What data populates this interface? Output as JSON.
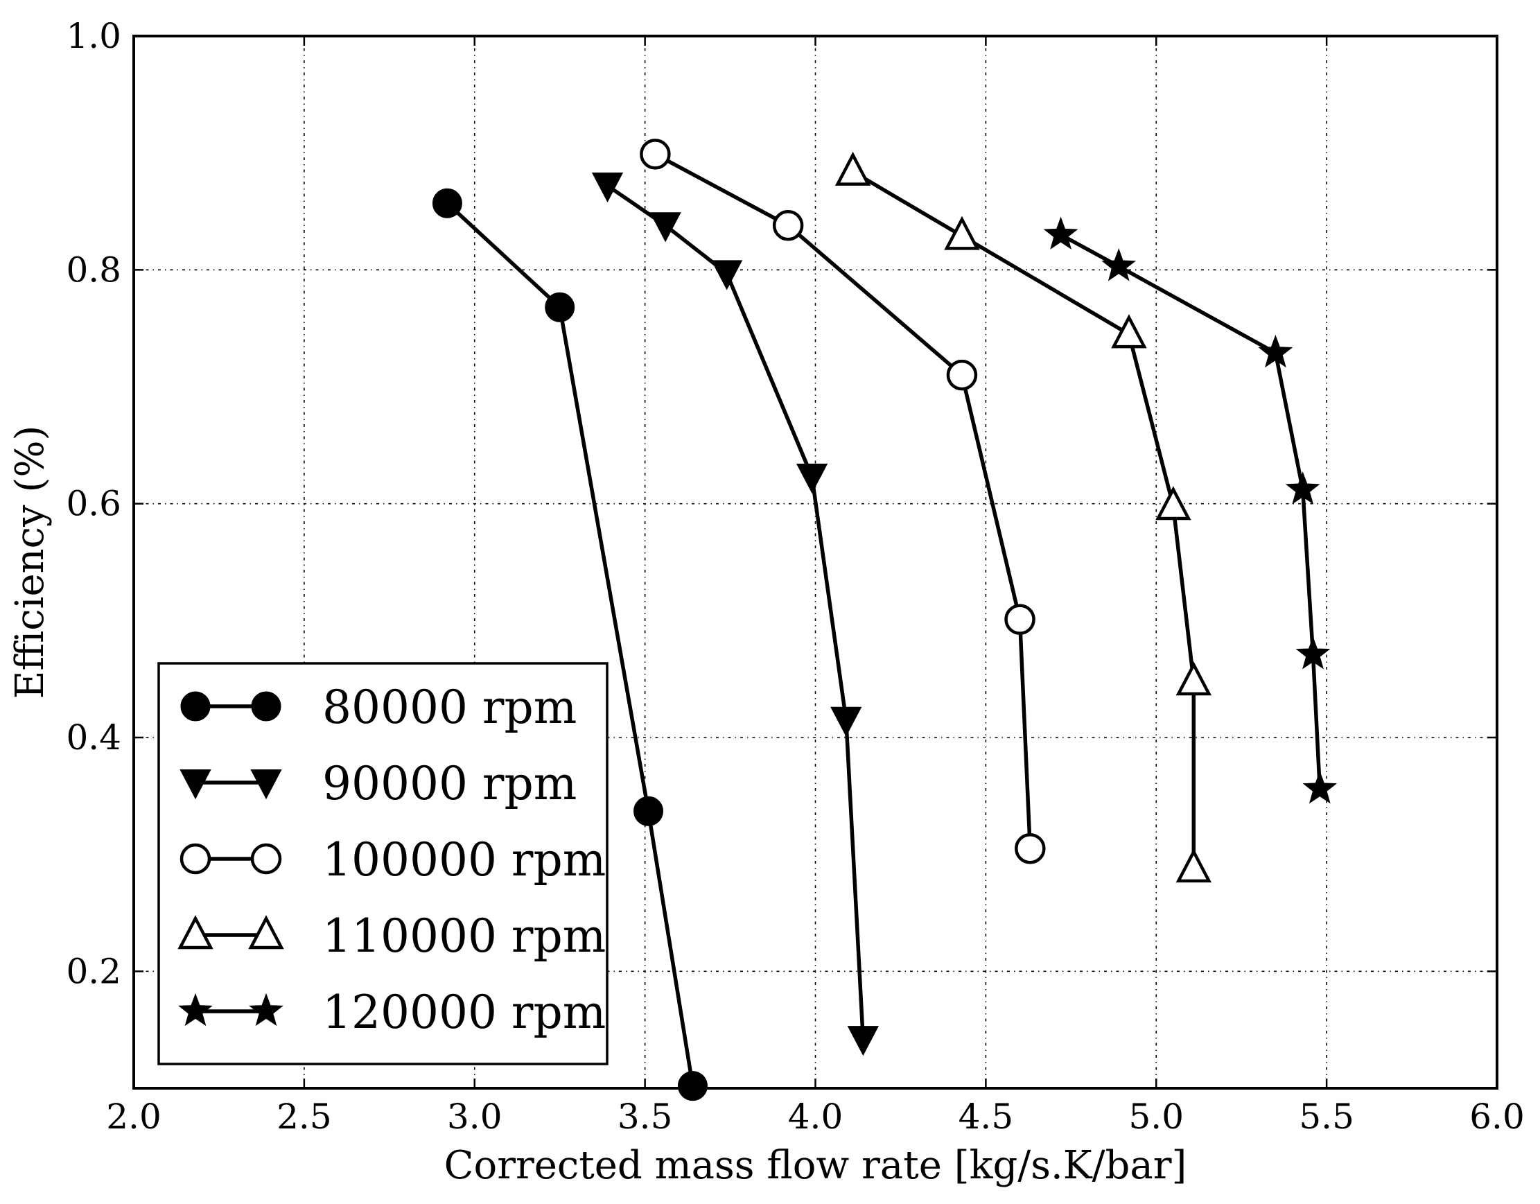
{
  "chart_data": {
    "type": "line",
    "title": "",
    "xlabel": "Corrected mass flow rate [kg/s.K/bar]",
    "ylabel": "Efficiency (%)",
    "xlim": [
      2.0,
      6.0
    ],
    "ylim": [
      0.1,
      1.0
    ],
    "xticks": [
      2.0,
      2.5,
      3.0,
      3.5,
      4.0,
      4.5,
      5.0,
      5.5,
      6.0
    ],
    "xtick_labels": [
      "2.0",
      "2.5",
      "3.0",
      "3.5",
      "4.0",
      "4.5",
      "5.0",
      "5.5",
      "6.0"
    ],
    "yticks": [
      0.2,
      0.4,
      0.6,
      0.8,
      1.0
    ],
    "ytick_labels": [
      "0.2",
      "0.4",
      "0.6",
      "0.8",
      "1.0"
    ],
    "grid": true,
    "legend_position": "lower-left",
    "line_color": "#000000",
    "series": [
      {
        "name": "80000 rpm",
        "marker": "filled-circle",
        "x": [
          2.92,
          3.25,
          3.51,
          3.64
        ],
        "y": [
          0.857,
          0.768,
          0.337,
          0.102
        ]
      },
      {
        "name": "90000 rpm",
        "marker": "filled-triangle-down",
        "x": [
          3.39,
          3.56,
          3.74,
          3.99,
          4.09,
          4.14
        ],
        "y": [
          0.872,
          0.838,
          0.797,
          0.623,
          0.415,
          0.142
        ]
      },
      {
        "name": "100000 rpm",
        "marker": "open-circle",
        "x": [
          3.53,
          3.92,
          4.43,
          4.6,
          4.63
        ],
        "y": [
          0.899,
          0.838,
          0.71,
          0.501,
          0.305
        ]
      },
      {
        "name": "110000 rpm",
        "marker": "open-triangle-up",
        "x": [
          4.11,
          4.43,
          4.92,
          5.05,
          5.11,
          5.11
        ],
        "y": [
          0.884,
          0.829,
          0.745,
          0.598,
          0.448,
          0.288
        ]
      },
      {
        "name": "120000 rpm",
        "marker": "filled-star",
        "x": [
          4.72,
          4.89,
          5.35,
          5.43,
          5.46,
          5.48
        ],
        "y": [
          0.83,
          0.803,
          0.729,
          0.612,
          0.471,
          0.356
        ]
      }
    ]
  }
}
